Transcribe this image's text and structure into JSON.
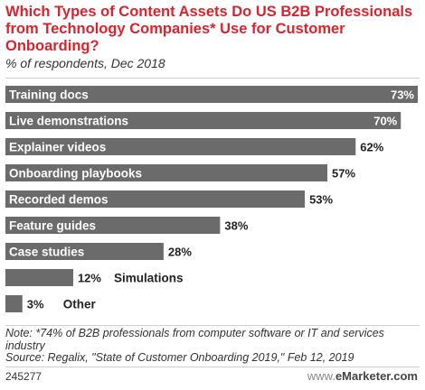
{
  "title": "Which Types of Content Assets Do US B2B Professionals from Technology Companies* Use for Customer Onboarding?",
  "subtitle": "% of respondents, Dec 2018",
  "chart_data": {
    "type": "bar",
    "orientation": "horizontal",
    "categories": [
      "Training docs",
      "Live demonstrations",
      "Explainer videos",
      "Onboarding playbooks",
      "Recorded demos",
      "Feature guides",
      "Case studies",
      "Simulations",
      "Other"
    ],
    "values": [
      73,
      70,
      62,
      57,
      53,
      38,
      28,
      12,
      3
    ],
    "value_labels": [
      "73%",
      "70%",
      "62%",
      "57%",
      "53%",
      "38%",
      "28%",
      "12%",
      "3%"
    ],
    "xlim": [
      0,
      73
    ],
    "colors": {
      "bar": "#6b6b6b",
      "title": "#d9232d"
    }
  },
  "footer": {
    "note": "Note: *74% of B2B professionals from computer software or IT and services industry",
    "source": "Source: Regalix, \"State of Customer Onboarding 2019,\" Feb 12, 2019",
    "chart_id": "245277",
    "brand_www": "www.",
    "brand_name": "eMarketer.com"
  }
}
